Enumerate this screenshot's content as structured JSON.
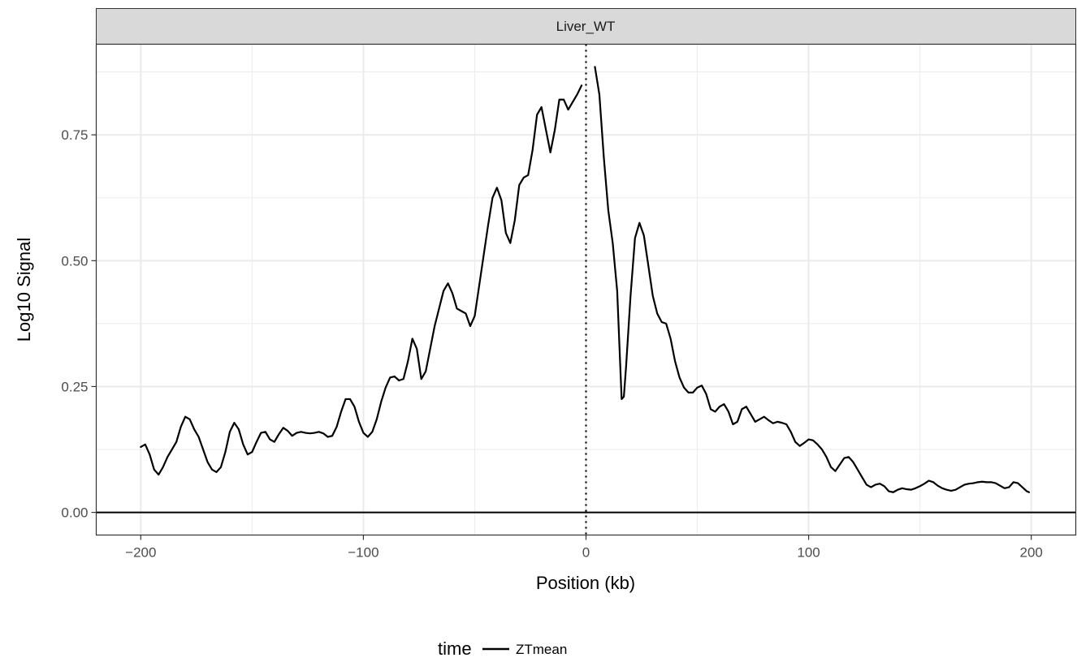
{
  "chart_data": {
    "type": "line",
    "facet": "Liver_WT",
    "xlabel": "Position (kb)",
    "ylabel": "Log10 Signal",
    "xlim": [
      -220,
      220
    ],
    "ylim": [
      -0.045,
      0.93
    ],
    "x_ticks": [
      -200,
      -100,
      0,
      100,
      200
    ],
    "x_tick_labels": [
      "−200",
      "−100",
      "0",
      "100",
      "200"
    ],
    "y_ticks": [
      0.0,
      0.25,
      0.5,
      0.75
    ],
    "y_tick_labels": [
      "0.00",
      "0.25",
      "0.50",
      "0.75"
    ],
    "grid": true,
    "hline": {
      "y": 0,
      "style": "solid"
    },
    "vline": {
      "x": 0,
      "style": "dotted"
    },
    "legend": {
      "position": "bottom",
      "title": "time",
      "entries": [
        "ZTmean"
      ]
    },
    "series": [
      {
        "name": "ZTmean",
        "color": "#000000",
        "segments": [
          [
            [
              -200,
              0.13
            ],
            [
              -198,
              0.135
            ],
            [
              -196,
              0.115
            ],
            [
              -194,
              0.085
            ],
            [
              -192,
              0.075
            ],
            [
              -190,
              0.09
            ],
            [
              -188,
              0.11
            ],
            [
              -186,
              0.125
            ],
            [
              -184,
              0.14
            ],
            [
              -182,
              0.17
            ],
            [
              -180,
              0.19
            ],
            [
              -178,
              0.185
            ],
            [
              -176,
              0.165
            ],
            [
              -174,
              0.15
            ],
            [
              -172,
              0.125
            ],
            [
              -170,
              0.1
            ],
            [
              -168,
              0.085
            ],
            [
              -166,
              0.08
            ],
            [
              -164,
              0.09
            ],
            [
              -162,
              0.12
            ],
            [
              -160,
              0.16
            ],
            [
              -158,
              0.178
            ],
            [
              -156,
              0.165
            ],
            [
              -154,
              0.135
            ],
            [
              -152,
              0.115
            ],
            [
              -150,
              0.12
            ],
            [
              -148,
              0.14
            ],
            [
              -146,
              0.158
            ],
            [
              -144,
              0.16
            ],
            [
              -142,
              0.145
            ],
            [
              -140,
              0.14
            ],
            [
              -138,
              0.155
            ],
            [
              -136,
              0.168
            ],
            [
              -134,
              0.162
            ],
            [
              -132,
              0.152
            ],
            [
              -130,
              0.158
            ],
            [
              -128,
              0.16
            ],
            [
              -126,
              0.158
            ],
            [
              -124,
              0.157
            ],
            [
              -122,
              0.158
            ],
            [
              -120,
              0.16
            ],
            [
              -118,
              0.157
            ],
            [
              -116,
              0.15
            ],
            [
              -114,
              0.152
            ],
            [
              -112,
              0.17
            ],
            [
              -110,
              0.2
            ],
            [
              -108,
              0.225
            ],
            [
              -106,
              0.225
            ],
            [
              -104,
              0.21
            ],
            [
              -102,
              0.18
            ],
            [
              -100,
              0.158
            ],
            [
              -98,
              0.15
            ],
            [
              -96,
              0.16
            ],
            [
              -94,
              0.185
            ],
            [
              -92,
              0.22
            ],
            [
              -90,
              0.248
            ],
            [
              -88,
              0.268
            ],
            [
              -86,
              0.27
            ],
            [
              -84,
              0.262
            ],
            [
              -82,
              0.265
            ],
            [
              -80,
              0.3
            ],
            [
              -78,
              0.345
            ],
            [
              -76,
              0.325
            ],
            [
              -74,
              0.265
            ],
            [
              -72,
              0.28
            ],
            [
              -70,
              0.325
            ],
            [
              -68,
              0.37
            ],
            [
              -66,
              0.405
            ],
            [
              -64,
              0.44
            ],
            [
              -62,
              0.455
            ],
            [
              -60,
              0.435
            ],
            [
              -58,
              0.405
            ],
            [
              -56,
              0.4
            ],
            [
              -54,
              0.395
            ],
            [
              -52,
              0.37
            ],
            [
              -50,
              0.39
            ],
            [
              -48,
              0.45
            ],
            [
              -46,
              0.51
            ],
            [
              -44,
              0.57
            ],
            [
              -42,
              0.625
            ],
            [
              -40,
              0.645
            ],
            [
              -38,
              0.62
            ],
            [
              -36,
              0.555
            ],
            [
              -34,
              0.535
            ],
            [
              -32,
              0.58
            ],
            [
              -30,
              0.65
            ],
            [
              -28,
              0.665
            ],
            [
              -26,
              0.67
            ],
            [
              -24,
              0.72
            ],
            [
              -22,
              0.79
            ],
            [
              -20,
              0.805
            ],
            [
              -18,
              0.76
            ],
            [
              -16,
              0.715
            ],
            [
              -14,
              0.76
            ],
            [
              -12,
              0.82
            ],
            [
              -10,
              0.82
            ],
            [
              -8,
              0.8
            ],
            [
              -6,
              0.815
            ],
            [
              -4,
              0.83
            ],
            [
              -2,
              0.848
            ]
          ],
          [
            [
              4,
              0.885
            ],
            [
              6,
              0.83
            ],
            [
              8,
              0.705
            ],
            [
              10,
              0.6
            ],
            [
              12,
              0.535
            ],
            [
              14,
              0.44
            ],
            [
              16,
              0.225
            ],
            [
              17,
              0.23
            ],
            [
              18,
              0.29
            ],
            [
              20,
              0.43
            ],
            [
              22,
              0.545
            ],
            [
              24,
              0.575
            ],
            [
              26,
              0.55
            ],
            [
              28,
              0.49
            ],
            [
              30,
              0.43
            ],
            [
              32,
              0.395
            ],
            [
              34,
              0.378
            ],
            [
              36,
              0.375
            ],
            [
              38,
              0.345
            ],
            [
              40,
              0.3
            ],
            [
              42,
              0.268
            ],
            [
              44,
              0.248
            ],
            [
              46,
              0.238
            ],
            [
              48,
              0.238
            ],
            [
              50,
              0.248
            ],
            [
              52,
              0.252
            ],
            [
              54,
              0.235
            ],
            [
              56,
              0.205
            ],
            [
              58,
              0.2
            ],
            [
              60,
              0.21
            ],
            [
              62,
              0.215
            ],
            [
              64,
              0.2
            ],
            [
              66,
              0.175
            ],
            [
              68,
              0.18
            ],
            [
              70,
              0.205
            ],
            [
              72,
              0.21
            ],
            [
              74,
              0.195
            ],
            [
              76,
              0.18
            ],
            [
              78,
              0.185
            ],
            [
              80,
              0.19
            ],
            [
              82,
              0.183
            ],
            [
              84,
              0.177
            ],
            [
              86,
              0.18
            ],
            [
              88,
              0.178
            ],
            [
              90,
              0.175
            ],
            [
              92,
              0.16
            ],
            [
              94,
              0.14
            ],
            [
              96,
              0.132
            ],
            [
              98,
              0.138
            ],
            [
              100,
              0.145
            ],
            [
              102,
              0.143
            ],
            [
              104,
              0.135
            ],
            [
              106,
              0.125
            ],
            [
              108,
              0.11
            ],
            [
              110,
              0.09
            ],
            [
              112,
              0.082
            ],
            [
              114,
              0.095
            ],
            [
              116,
              0.108
            ],
            [
              118,
              0.11
            ],
            [
              120,
              0.1
            ],
            [
              122,
              0.085
            ],
            [
              124,
              0.07
            ],
            [
              126,
              0.055
            ],
            [
              128,
              0.05
            ],
            [
              130,
              0.055
            ],
            [
              132,
              0.057
            ],
            [
              134,
              0.052
            ],
            [
              136,
              0.042
            ],
            [
              138,
              0.04
            ],
            [
              140,
              0.045
            ],
            [
              142,
              0.048
            ],
            [
              144,
              0.046
            ],
            [
              146,
              0.045
            ],
            [
              148,
              0.048
            ],
            [
              150,
              0.052
            ],
            [
              152,
              0.057
            ],
            [
              154,
              0.063
            ],
            [
              156,
              0.06
            ],
            [
              158,
              0.053
            ],
            [
              160,
              0.048
            ],
            [
              162,
              0.045
            ],
            [
              164,
              0.043
            ],
            [
              166,
              0.045
            ],
            [
              168,
              0.05
            ],
            [
              170,
              0.055
            ],
            [
              172,
              0.057
            ],
            [
              174,
              0.058
            ],
            [
              176,
              0.06
            ],
            [
              178,
              0.061
            ],
            [
              180,
              0.06
            ],
            [
              182,
              0.06
            ],
            [
              184,
              0.058
            ],
            [
              186,
              0.053
            ],
            [
              188,
              0.048
            ],
            [
              190,
              0.05
            ],
            [
              192,
              0.06
            ],
            [
              194,
              0.058
            ],
            [
              196,
              0.05
            ],
            [
              198,
              0.042
            ],
            [
              199,
              0.04
            ]
          ]
        ]
      }
    ]
  }
}
